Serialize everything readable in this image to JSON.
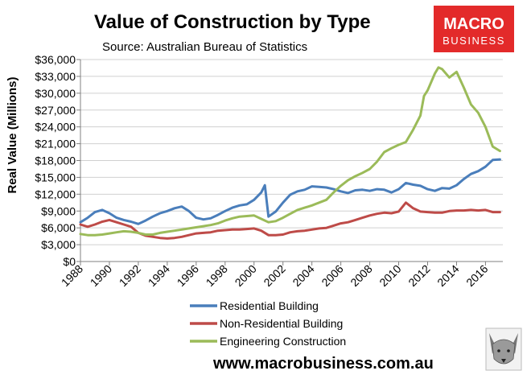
{
  "header": {
    "title": "Value of Construction by Type",
    "source": "Source: Australian Bureau of Statistics"
  },
  "logo": {
    "line1": "MACRO",
    "line2": "BUSINESS",
    "bg_color": "#e32a2a"
  },
  "footer": {
    "url": "www.macrobusiness.com.au",
    "mascot_icon": "wolf-face-icon"
  },
  "chart_data": {
    "type": "line",
    "title": "Value of Construction by Type",
    "ylabel": "Real Value (Millions)",
    "xlabel": "",
    "xlim": [
      1988,
      2017.2
    ],
    "ylim": [
      0,
      36000
    ],
    "yticks": [
      0,
      3000,
      6000,
      9000,
      12000,
      15000,
      18000,
      21000,
      24000,
      27000,
      30000,
      33000,
      36000
    ],
    "ytick_labels": [
      "$0",
      "$3,000",
      "$6,000",
      "$9,000",
      "$12,000",
      "$15,000",
      "$18,000",
      "$21,000",
      "$24,000",
      "$27,000",
      "$30,000",
      "$33,000",
      "$36,000"
    ],
    "xticks": [
      1988,
      1990,
      1992,
      1994,
      1996,
      1998,
      2000,
      2002,
      2004,
      2006,
      2008,
      2010,
      2012,
      2014,
      2016
    ],
    "xtick_labels": [
      "1988",
      "1990",
      "1992",
      "1994",
      "1996",
      "1998",
      "2000",
      "2002",
      "2004",
      "2006",
      "2008",
      "2010",
      "2012",
      "2014",
      "2016"
    ],
    "grid": "horizontal",
    "legend_position": "bottom",
    "series": [
      {
        "name": "Residential Building",
        "color": "#4a7ebb",
        "x": [
          1988,
          1988.5,
          1989,
          1989.5,
          1990,
          1990.5,
          1991,
          1991.5,
          1992,
          1992.5,
          1993,
          1993.5,
          1994,
          1994.5,
          1995,
          1995.5,
          1996,
          1996.5,
          1997,
          1997.5,
          1998,
          1998.5,
          1999,
          1999.5,
          2000,
          2000.5,
          2000.75,
          2001,
          2001.5,
          2002,
          2002.5,
          2003,
          2003.5,
          2004,
          2004.5,
          2005,
          2005.5,
          2006,
          2006.5,
          2007,
          2007.5,
          2008,
          2008.5,
          2009,
          2009.5,
          2010,
          2010.5,
          2011,
          2011.5,
          2012,
          2012.5,
          2013,
          2013.5,
          2014,
          2014.5,
          2015,
          2015.5,
          2016,
          2016.5,
          2017
        ],
        "values": [
          7000,
          7800,
          8800,
          9200,
          8600,
          7800,
          7400,
          7100,
          6700,
          7300,
          8000,
          8600,
          9000,
          9500,
          9800,
          9000,
          7800,
          7500,
          7700,
          8300,
          9000,
          9600,
          10000,
          10200,
          11000,
          12300,
          13600,
          8000,
          8900,
          10500,
          11900,
          12500,
          12800,
          13400,
          13300,
          13200,
          12900,
          12500,
          12200,
          12700,
          12800,
          12600,
          12900,
          12800,
          12300,
          12900,
          14000,
          13700,
          13500,
          12900,
          12600,
          13100,
          13000,
          13600,
          14700,
          15600,
          16100,
          16900,
          18100,
          18200
        ]
      },
      {
        "name": "Non-Residential Building",
        "color": "#be4b48",
        "x": [
          1988,
          1988.5,
          1989,
          1989.5,
          1990,
          1990.5,
          1991,
          1991.5,
          1992,
          1992.5,
          1993,
          1993.5,
          1994,
          1994.5,
          1995,
          1995.5,
          1996,
          1996.5,
          1997,
          1997.5,
          1998,
          1998.5,
          1999,
          1999.5,
          2000,
          2000.5,
          2001,
          2001.5,
          2002,
          2002.5,
          2003,
          2003.5,
          2004,
          2004.5,
          2005,
          2005.5,
          2006,
          2006.5,
          2007,
          2007.5,
          2008,
          2008.5,
          2009,
          2009.5,
          2010,
          2010.5,
          2011,
          2011.5,
          2012,
          2012.5,
          2013,
          2013.5,
          2014,
          2014.5,
          2015,
          2015.5,
          2016,
          2016.5,
          2017
        ],
        "values": [
          6600,
          6200,
          6600,
          7100,
          7400,
          7000,
          6600,
          6200,
          5100,
          4600,
          4400,
          4200,
          4100,
          4200,
          4400,
          4700,
          5000,
          5100,
          5200,
          5500,
          5600,
          5700,
          5700,
          5800,
          5900,
          5500,
          4700,
          4700,
          4800,
          5200,
          5400,
          5500,
          5700,
          5900,
          6000,
          6400,
          6800,
          7000,
          7400,
          7800,
          8200,
          8500,
          8700,
          8600,
          8900,
          10500,
          9500,
          8900,
          8800,
          8700,
          8700,
          9000,
          9100,
          9100,
          9200,
          9100,
          9200,
          8800,
          8800
        ]
      },
      {
        "name": "Engineering Construction",
        "color": "#9bbb59",
        "x": [
          1988,
          1988.5,
          1989,
          1989.5,
          1990,
          1990.5,
          1991,
          1991.5,
          1992,
          1992.5,
          1993,
          1993.5,
          1994,
          1994.5,
          1995,
          1995.5,
          1996,
          1996.5,
          1997,
          1997.5,
          1998,
          1998.5,
          1999,
          1999.5,
          2000,
          2000.5,
          2001,
          2001.5,
          2002,
          2002.5,
          2003,
          2003.5,
          2004,
          2004.5,
          2005,
          2005.5,
          2006,
          2006.5,
          2007,
          2007.5,
          2008,
          2008.5,
          2009,
          2009.5,
          2010,
          2010.5,
          2011,
          2011.5,
          2011.75,
          2012,
          2012.5,
          2012.75,
          2013,
          2013.5,
          2014,
          2014.5,
          2015,
          2015.5,
          2016,
          2016.5,
          2017
        ],
        "values": [
          4900,
          4700,
          4700,
          4800,
          5000,
          5200,
          5400,
          5300,
          5100,
          4800,
          4800,
          5100,
          5300,
          5500,
          5700,
          5900,
          6100,
          6300,
          6500,
          6800,
          7300,
          7700,
          8000,
          8100,
          8200,
          7600,
          7000,
          7200,
          7800,
          8500,
          9200,
          9600,
          10000,
          10500,
          11000,
          12300,
          13500,
          14500,
          15200,
          15800,
          16500,
          17800,
          19500,
          20200,
          20800,
          21300,
          23500,
          26000,
          29500,
          30500,
          33500,
          34600,
          34300,
          32800,
          33800,
          31000,
          28000,
          26500,
          24000,
          20500,
          19700
        ]
      }
    ]
  }
}
